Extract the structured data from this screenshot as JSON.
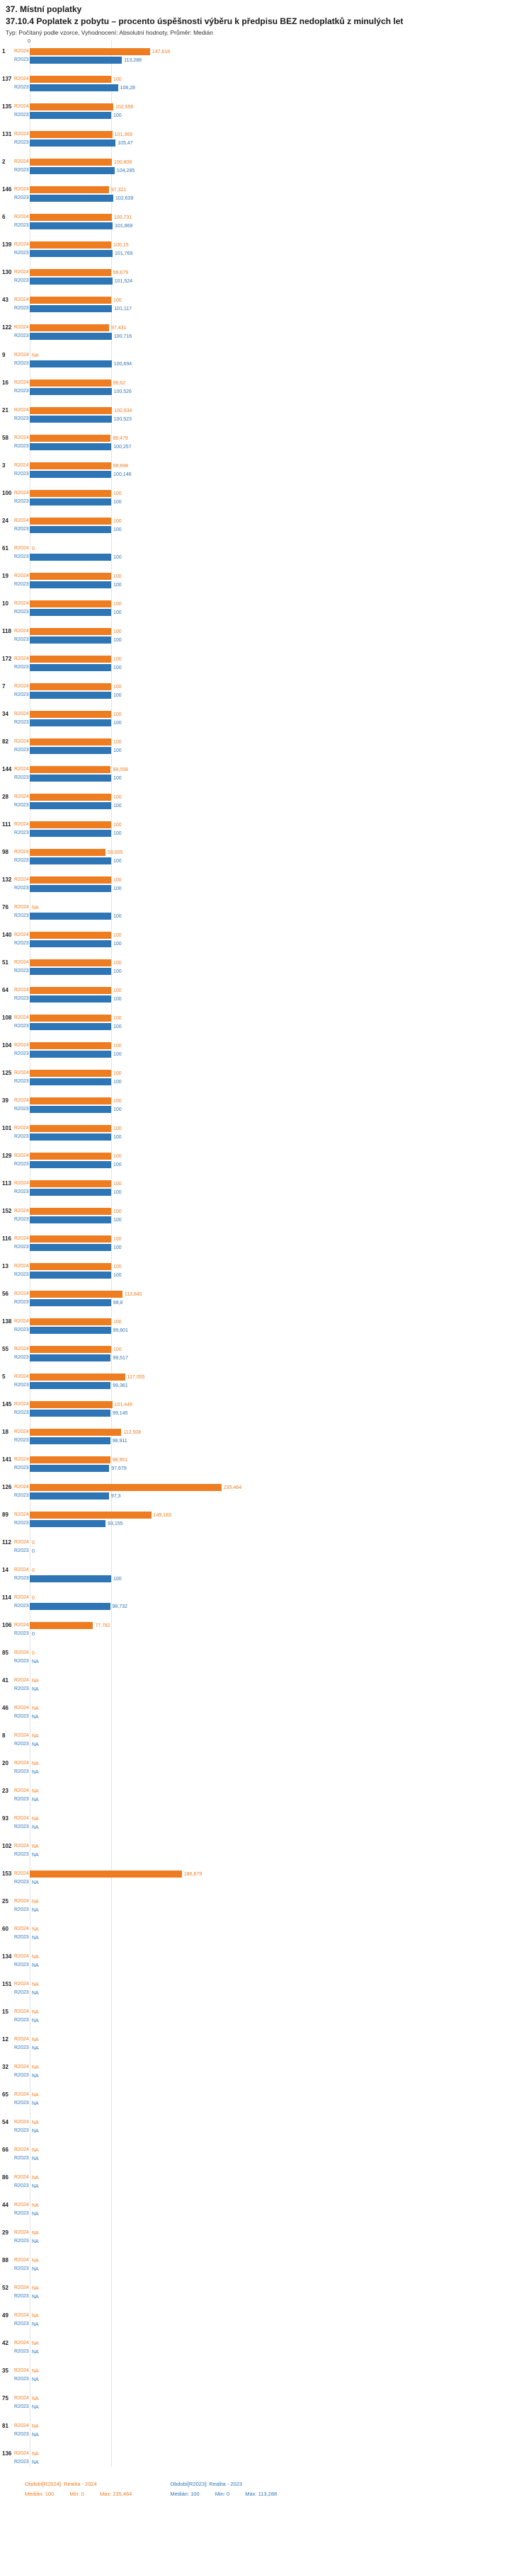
{
  "header": {
    "section_title": "37. Místní poplatky",
    "chart_title": "37.10.4 Poplatek z pobytu – procento úspěšnosti výběru k předpisu BEZ nedoplatků z minulých let",
    "meta": "Typ: Počítaný podle vzorce, Vyhodnocení: Absolutní hodnoty, Průměr: Medián"
  },
  "colors": {
    "r2024": "#ee7d22",
    "r2023": "#2e75b5"
  },
  "legend": {
    "r2024": {
      "label": "Období[R2024]: Realita - 2024",
      "median": "Medián: 100",
      "min": "Min: 0",
      "max": "Max: 235,464"
    },
    "r2023": {
      "label": "Období[R2023]: Realita - 2023",
      "median": "Medián: 100",
      "min": "Min: 0",
      "max": "Max: 113,288"
    }
  },
  "chart_data": {
    "type": "bar",
    "orientation": "horizontal",
    "title": "37.10.4 Poplatek z pobytu – procento úspěšnosti výběru k předpisu BEZ nedoplatků z minulých let",
    "series": [
      "R2024",
      "R2023"
    ],
    "x_axis": {
      "min": 0,
      "zero_label": "0",
      "gridline_value": 100,
      "unit": "percent"
    },
    "rows": [
      {
        "id": "1",
        "r2024": 147.618,
        "r2024_label": "147,618",
        "r2023": 113.288,
        "r2023_label": "113,288"
      },
      {
        "id": "137",
        "r2024": 100,
        "r2024_label": "100",
        "r2023": 108.28,
        "r2023_label": "108,28"
      },
      {
        "id": "135",
        "r2024": 102.556,
        "r2024_label": "102,556",
        "r2023": 100,
        "r2023_label": "100"
      },
      {
        "id": "131",
        "r2024": 101.369,
        "r2024_label": "101,369",
        "r2023": 105.47,
        "r2023_label": "105,47"
      },
      {
        "id": "2",
        "r2024": 100.808,
        "r2024_label": "100,808",
        "r2023": 104.285,
        "r2023_label": "104,285"
      },
      {
        "id": "146",
        "r2024": 97.321,
        "r2024_label": "97,321",
        "r2023": 102.639,
        "r2023_label": "102,639"
      },
      {
        "id": "6",
        "r2024": 100.731,
        "r2024_label": "100,731",
        "r2023": 101.869,
        "r2023_label": "101,869"
      },
      {
        "id": "139",
        "r2024": 100.15,
        "r2024_label": "100,15",
        "r2023": 101.769,
        "r2023_label": "101,769"
      },
      {
        "id": "130",
        "r2024": 99.679,
        "r2024_label": "99,679",
        "r2023": 101.524,
        "r2023_label": "101,524"
      },
      {
        "id": "43",
        "r2024": 100,
        "r2024_label": "100",
        "r2023": 101.117,
        "r2023_label": "101,117"
      },
      {
        "id": "122",
        "r2024": 97.431,
        "r2024_label": "97,431",
        "r2023": 100.716,
        "r2023_label": "100,716"
      },
      {
        "id": "9",
        "r2024": null,
        "r2024_label": "NA",
        "r2023": 100.694,
        "r2023_label": "100,694"
      },
      {
        "id": "16",
        "r2024": 99.62,
        "r2024_label": "99,62",
        "r2023": 100.526,
        "r2023_label": "100,526"
      },
      {
        "id": "21",
        "r2024": 100.934,
        "r2024_label": "100,934",
        "r2023": 100.523,
        "r2023_label": "100,523"
      },
      {
        "id": "58",
        "r2024": 99.479,
        "r2024_label": "99,479",
        "r2023": 100.257,
        "r2023_label": "100,257"
      },
      {
        "id": "3",
        "r2024": 99.698,
        "r2024_label": "99,698",
        "r2023": 100.146,
        "r2023_label": "100,146"
      },
      {
        "id": "100",
        "r2024": 100,
        "r2024_label": "100",
        "r2023": 100,
        "r2023_label": "100"
      },
      {
        "id": "24",
        "r2024": 100,
        "r2024_label": "100",
        "r2023": 100,
        "r2023_label": "100"
      },
      {
        "id": "61",
        "r2024": 0,
        "r2024_label": "0",
        "r2023": 100,
        "r2023_label": "100"
      },
      {
        "id": "19",
        "r2024": 100,
        "r2024_label": "100",
        "r2023": 100,
        "r2023_label": "100"
      },
      {
        "id": "10",
        "r2024": 100,
        "r2024_label": "100",
        "r2023": 100,
        "r2023_label": "100"
      },
      {
        "id": "118",
        "r2024": 100,
        "r2024_label": "100",
        "r2023": 100,
        "r2023_label": "100"
      },
      {
        "id": "172",
        "r2024": 100,
        "r2024_label": "100",
        "r2023": 100,
        "r2023_label": "100"
      },
      {
        "id": "7",
        "r2024": 100,
        "r2024_label": "100",
        "r2023": 100,
        "r2023_label": "100"
      },
      {
        "id": "34",
        "r2024": 100,
        "r2024_label": "100",
        "r2023": 100,
        "r2023_label": "100"
      },
      {
        "id": "82",
        "r2024": 100,
        "r2024_label": "100",
        "r2023": 100,
        "r2023_label": "100"
      },
      {
        "id": "144",
        "r2024": 99.558,
        "r2024_label": "99,558",
        "r2023": 100,
        "r2023_label": "100"
      },
      {
        "id": "28",
        "r2024": 100,
        "r2024_label": "100",
        "r2023": 100,
        "r2023_label": "100"
      },
      {
        "id": "111",
        "r2024": 100,
        "r2024_label": "100",
        "r2023": 100,
        "r2023_label": "100"
      },
      {
        "id": "98",
        "r2024": 93.005,
        "r2024_label": "93,005",
        "r2023": 100,
        "r2023_label": "100"
      },
      {
        "id": "132",
        "r2024": 100,
        "r2024_label": "100",
        "r2023": 100,
        "r2023_label": "100"
      },
      {
        "id": "76",
        "r2024": null,
        "r2024_label": "NA",
        "r2023": 100,
        "r2023_label": "100"
      },
      {
        "id": "140",
        "r2024": 100,
        "r2024_label": "100",
        "r2023": 100,
        "r2023_label": "100"
      },
      {
        "id": "51",
        "r2024": 100,
        "r2024_label": "100",
        "r2023": 100,
        "r2023_label": "100"
      },
      {
        "id": "64",
        "r2024": 100,
        "r2024_label": "100",
        "r2023": 100,
        "r2023_label": "100"
      },
      {
        "id": "108",
        "r2024": 100,
        "r2024_label": "100",
        "r2023": 100,
        "r2023_label": "100"
      },
      {
        "id": "104",
        "r2024": 100,
        "r2024_label": "100",
        "r2023": 100,
        "r2023_label": "100"
      },
      {
        "id": "125",
        "r2024": 100,
        "r2024_label": "100",
        "r2023": 100,
        "r2023_label": "100"
      },
      {
        "id": "39",
        "r2024": 100,
        "r2024_label": "100",
        "r2023": 100,
        "r2023_label": "100"
      },
      {
        "id": "101",
        "r2024": 100,
        "r2024_label": "100",
        "r2023": 100,
        "r2023_label": "100"
      },
      {
        "id": "129",
        "r2024": 100,
        "r2024_label": "100",
        "r2023": 100,
        "r2023_label": "100"
      },
      {
        "id": "113",
        "r2024": 100,
        "r2024_label": "100",
        "r2023": 100,
        "r2023_label": "100"
      },
      {
        "id": "152",
        "r2024": 100,
        "r2024_label": "100",
        "r2023": 100,
        "r2023_label": "100"
      },
      {
        "id": "116",
        "r2024": 100,
        "r2024_label": "100",
        "r2023": 100,
        "r2023_label": "100"
      },
      {
        "id": "13",
        "r2024": 100,
        "r2024_label": "100",
        "r2023": 100,
        "r2023_label": "100"
      },
      {
        "id": "56",
        "r2024": 113.845,
        "r2024_label": "113,845",
        "r2023": 99.8,
        "r2023_label": "99,8"
      },
      {
        "id": "138",
        "r2024": 100,
        "r2024_label": "100",
        "r2023": 99.601,
        "r2023_label": "99,601"
      },
      {
        "id": "55",
        "r2024": 100,
        "r2024_label": "100",
        "r2023": 99.517,
        "r2023_label": "99,517"
      },
      {
        "id": "5",
        "r2024": 117.055,
        "r2024_label": "117,055",
        "r2023": 99.361,
        "r2023_label": "99,361"
      },
      {
        "id": "145",
        "r2024": 101.446,
        "r2024_label": "101,446",
        "r2023": 99.145,
        "r2023_label": "99,145"
      },
      {
        "id": "18",
        "r2024": 112.508,
        "r2024_label": "112,508",
        "r2023": 98.911,
        "r2023_label": "98,911"
      },
      {
        "id": "141",
        "r2024": 98.951,
        "r2024_label": "98,951",
        "r2023": 97.679,
        "r2023_label": "97,679"
      },
      {
        "id": "126",
        "r2024": 235.464,
        "r2024_label": "235,464",
        "r2023": 97.3,
        "r2023_label": "97,3"
      },
      {
        "id": "89",
        "r2024": 149.183,
        "r2024_label": "149,183",
        "r2023": 93.155,
        "r2023_label": "93,155"
      },
      {
        "id": "112",
        "r2024": 0,
        "r2024_label": "0",
        "r2023": 0,
        "r2023_label": "0"
      },
      {
        "id": "14",
        "r2024": 0,
        "r2024_label": "0",
        "r2023": 100,
        "r2023_label": "100"
      },
      {
        "id": "114",
        "r2024": 0,
        "r2024_label": "0",
        "r2023": 98.732,
        "r2023_label": "98,732"
      },
      {
        "id": "106",
        "r2024": 77.782,
        "r2024_label": "77,782",
        "r2023": 0,
        "r2023_label": "0"
      },
      {
        "id": "85",
        "r2024": 0,
        "r2024_label": "0",
        "r2023": null,
        "r2023_label": "NA"
      },
      {
        "id": "41",
        "r2024": null,
        "r2024_label": "NA",
        "r2023": null,
        "r2023_label": "NA"
      },
      {
        "id": "46",
        "r2024": null,
        "r2024_label": "NA",
        "r2023": null,
        "r2023_label": "NA"
      },
      {
        "id": "8",
        "r2024": null,
        "r2024_label": "NA",
        "r2023": null,
        "r2023_label": "NA"
      },
      {
        "id": "20",
        "r2024": null,
        "r2024_label": "NA",
        "r2023": null,
        "r2023_label": "NA"
      },
      {
        "id": "23",
        "r2024": null,
        "r2024_label": "NA",
        "r2023": null,
        "r2023_label": "NA"
      },
      {
        "id": "93",
        "r2024": null,
        "r2024_label": "NA",
        "r2023": null,
        "r2023_label": "NA"
      },
      {
        "id": "102",
        "r2024": null,
        "r2024_label": "NA",
        "r2023": null,
        "r2023_label": "NA"
      },
      {
        "id": "153",
        "r2024": 186.879,
        "r2024_label": "186,879",
        "r2023": null,
        "r2023_label": "NA"
      },
      {
        "id": "25",
        "r2024": null,
        "r2024_label": "NA",
        "r2023": null,
        "r2023_label": "NA"
      },
      {
        "id": "60",
        "r2024": null,
        "r2024_label": "NA",
        "r2023": null,
        "r2023_label": "NA"
      },
      {
        "id": "134",
        "r2024": null,
        "r2024_label": "NA",
        "r2023": null,
        "r2023_label": "NA"
      },
      {
        "id": "151",
        "r2024": null,
        "r2024_label": "NA",
        "r2023": null,
        "r2023_label": "NA"
      },
      {
        "id": "15",
        "r2024": null,
        "r2024_label": "NA",
        "r2023": null,
        "r2023_label": "NA"
      },
      {
        "id": "12",
        "r2024": null,
        "r2024_label": "NA",
        "r2023": null,
        "r2023_label": "NA"
      },
      {
        "id": "32",
        "r2024": null,
        "r2024_label": "NA",
        "r2023": null,
        "r2023_label": "NA"
      },
      {
        "id": "65",
        "r2024": null,
        "r2024_label": "NA",
        "r2023": null,
        "r2023_label": "NA"
      },
      {
        "id": "54",
        "r2024": null,
        "r2024_label": "NA",
        "r2023": null,
        "r2023_label": "NA"
      },
      {
        "id": "66",
        "r2024": null,
        "r2024_label": "NA",
        "r2023": null,
        "r2023_label": "NA"
      },
      {
        "id": "86",
        "r2024": null,
        "r2024_label": "NA",
        "r2023": null,
        "r2023_label": "NA"
      },
      {
        "id": "44",
        "r2024": null,
        "r2024_label": "NA",
        "r2023": null,
        "r2023_label": "NA"
      },
      {
        "id": "29",
        "r2024": null,
        "r2024_label": "NA",
        "r2023": null,
        "r2023_label": "NA"
      },
      {
        "id": "88",
        "r2024": null,
        "r2024_label": "NA",
        "r2023": null,
        "r2023_label": "NA"
      },
      {
        "id": "52",
        "r2024": null,
        "r2024_label": "NA",
        "r2023": null,
        "r2023_label": "NA"
      },
      {
        "id": "49",
        "r2024": null,
        "r2024_label": "NA",
        "r2023": null,
        "r2023_label": "NA"
      },
      {
        "id": "42",
        "r2024": null,
        "r2024_label": "NA",
        "r2023": null,
        "r2023_label": "NA"
      },
      {
        "id": "35",
        "r2024": null,
        "r2024_label": "NA",
        "r2023": null,
        "r2023_label": "NA"
      },
      {
        "id": "75",
        "r2024": null,
        "r2024_label": "NA",
        "r2023": null,
        "r2023_label": "NA"
      },
      {
        "id": "81",
        "r2024": null,
        "r2024_label": "NA",
        "r2023": null,
        "r2023_label": "NA"
      },
      {
        "id": "136",
        "r2024": null,
        "r2024_label": "NA",
        "r2023": null,
        "r2023_label": "NA"
      }
    ]
  }
}
